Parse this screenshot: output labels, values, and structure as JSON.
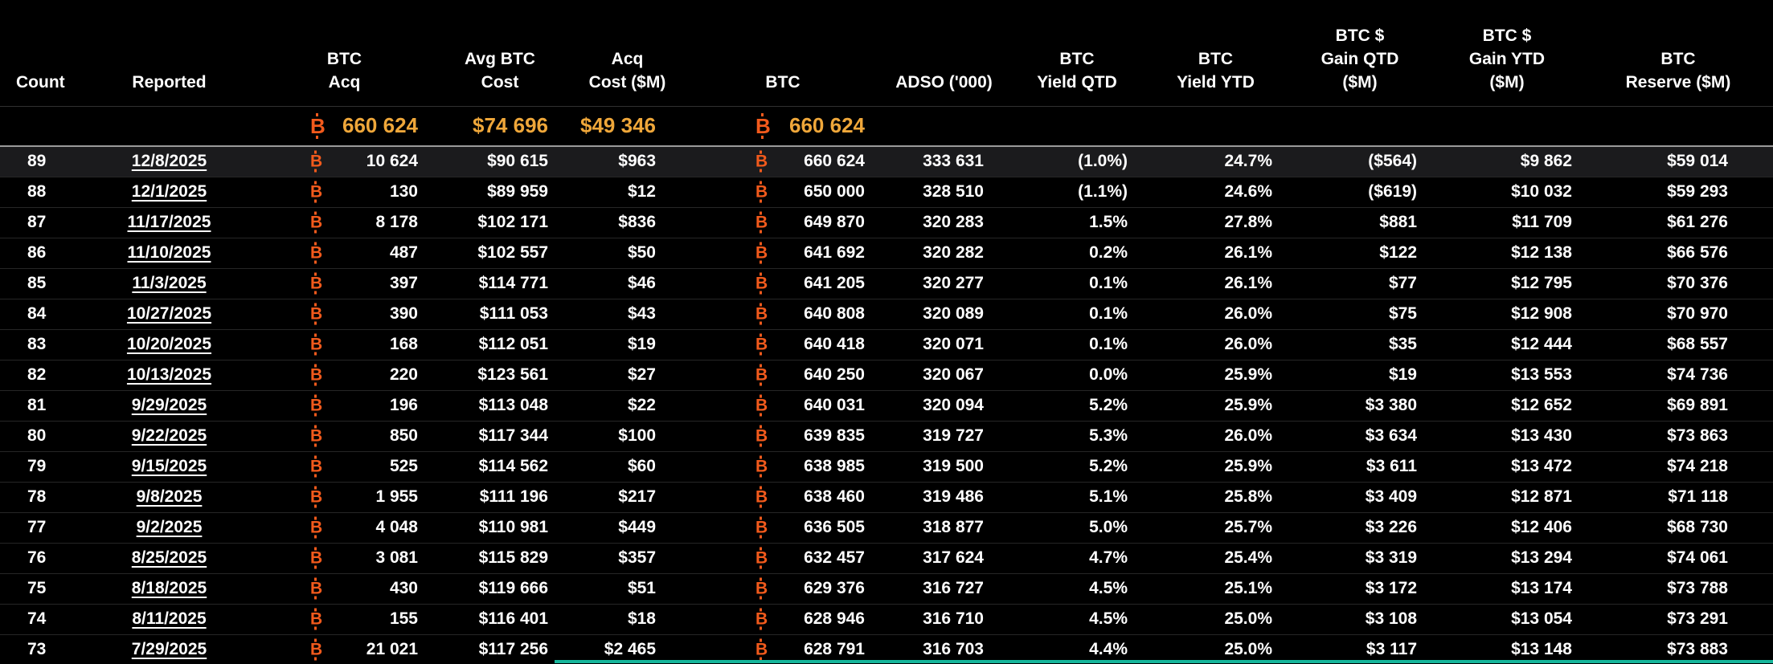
{
  "colors": {
    "bg": "#000000",
    "text": "#ffffff",
    "btc": "#f25a1c",
    "gold": "#efa73a",
    "separator": "#262626",
    "rule": "#9b9b9b",
    "teal": "#17b79c",
    "highlight": "#1b1b1d"
  },
  "icons": {
    "btc": "B"
  },
  "table": {
    "highlighted_row": "89",
    "columns": [
      {
        "key": "count",
        "label": "Count"
      },
      {
        "key": "reported",
        "label": "Reported",
        "link": true
      },
      {
        "key": "btc_acq",
        "label": "BTC\nAcq",
        "btc_prefix": true
      },
      {
        "key": "avg_btc_cost",
        "label": "Avg BTC\nCost"
      },
      {
        "key": "acq_cost",
        "label": "Acq\nCost ($M)"
      },
      {
        "key": "btc",
        "label": "BTC",
        "btc_prefix": true
      },
      {
        "key": "adso",
        "label": "ADSO ('000)"
      },
      {
        "key": "yield_qtd",
        "label": "BTC\nYield QTD"
      },
      {
        "key": "yield_ytd",
        "label": "BTC\nYield YTD"
      },
      {
        "key": "gain_qtd",
        "label": "BTC $\nGain QTD\n($M)"
      },
      {
        "key": "gain_ytd",
        "label": "BTC $\nGain YTD\n($M)"
      },
      {
        "key": "reserve",
        "label": "BTC\nReserve ($M)"
      }
    ],
    "summary": {
      "btc_acq": "660 624",
      "avg_btc_cost": "$74 696",
      "acq_cost": "$49 346",
      "btc": "660 624"
    },
    "rows": [
      {
        "count": "89",
        "reported": "12/8/2025",
        "btc_acq": "10 624",
        "avg_btc_cost": "$90 615",
        "acq_cost": "$963",
        "btc": "660 624",
        "adso": "333 631",
        "yield_qtd": "(1.0%)",
        "yield_ytd": "24.7%",
        "gain_qtd": "($564)",
        "gain_ytd": "$9 862",
        "reserve": "$59 014"
      },
      {
        "count": "88",
        "reported": "12/1/2025",
        "btc_acq": "130",
        "avg_btc_cost": "$89 959",
        "acq_cost": "$12",
        "btc": "650 000",
        "adso": "328 510",
        "yield_qtd": "(1.1%)",
        "yield_ytd": "24.6%",
        "gain_qtd": "($619)",
        "gain_ytd": "$10 032",
        "reserve": "$59 293"
      },
      {
        "count": "87",
        "reported": "11/17/2025",
        "btc_acq": "8 178",
        "avg_btc_cost": "$102 171",
        "acq_cost": "$836",
        "btc": "649 870",
        "adso": "320 283",
        "yield_qtd": "1.5%",
        "yield_ytd": "27.8%",
        "gain_qtd": "$881",
        "gain_ytd": "$11 709",
        "reserve": "$61 276"
      },
      {
        "count": "86",
        "reported": "11/10/2025",
        "btc_acq": "487",
        "avg_btc_cost": "$102 557",
        "acq_cost": "$50",
        "btc": "641 692",
        "adso": "320 282",
        "yield_qtd": "0.2%",
        "yield_ytd": "26.1%",
        "gain_qtd": "$122",
        "gain_ytd": "$12 138",
        "reserve": "$66 576"
      },
      {
        "count": "85",
        "reported": "11/3/2025",
        "btc_acq": "397",
        "avg_btc_cost": "$114 771",
        "acq_cost": "$46",
        "btc": "641 205",
        "adso": "320 277",
        "yield_qtd": "0.1%",
        "yield_ytd": "26.1%",
        "gain_qtd": "$77",
        "gain_ytd": "$12 795",
        "reserve": "$70 376"
      },
      {
        "count": "84",
        "reported": "10/27/2025",
        "btc_acq": "390",
        "avg_btc_cost": "$111 053",
        "acq_cost": "$43",
        "btc": "640 808",
        "adso": "320 089",
        "yield_qtd": "0.1%",
        "yield_ytd": "26.0%",
        "gain_qtd": "$75",
        "gain_ytd": "$12 908",
        "reserve": "$70 970"
      },
      {
        "count": "83",
        "reported": "10/20/2025",
        "btc_acq": "168",
        "avg_btc_cost": "$112 051",
        "acq_cost": "$19",
        "btc": "640 418",
        "adso": "320 071",
        "yield_qtd": "0.1%",
        "yield_ytd": "26.0%",
        "gain_qtd": "$35",
        "gain_ytd": "$12 444",
        "reserve": "$68 557"
      },
      {
        "count": "82",
        "reported": "10/13/2025",
        "btc_acq": "220",
        "avg_btc_cost": "$123 561",
        "acq_cost": "$27",
        "btc": "640 250",
        "adso": "320 067",
        "yield_qtd": "0.0%",
        "yield_ytd": "25.9%",
        "gain_qtd": "$19",
        "gain_ytd": "$13 553",
        "reserve": "$74 736"
      },
      {
        "count": "81",
        "reported": "9/29/2025",
        "btc_acq": "196",
        "avg_btc_cost": "$113 048",
        "acq_cost": "$22",
        "btc": "640 031",
        "adso": "320 094",
        "yield_qtd": "5.2%",
        "yield_ytd": "25.9%",
        "gain_qtd": "$3 380",
        "gain_ytd": "$12 652",
        "reserve": "$69 891"
      },
      {
        "count": "80",
        "reported": "9/22/2025",
        "btc_acq": "850",
        "avg_btc_cost": "$117 344",
        "acq_cost": "$100",
        "btc": "639 835",
        "adso": "319 727",
        "yield_qtd": "5.3%",
        "yield_ytd": "26.0%",
        "gain_qtd": "$3 634",
        "gain_ytd": "$13 430",
        "reserve": "$73 863"
      },
      {
        "count": "79",
        "reported": "9/15/2025",
        "btc_acq": "525",
        "avg_btc_cost": "$114 562",
        "acq_cost": "$60",
        "btc": "638 985",
        "adso": "319 500",
        "yield_qtd": "5.2%",
        "yield_ytd": "25.9%",
        "gain_qtd": "$3 611",
        "gain_ytd": "$13 472",
        "reserve": "$74 218"
      },
      {
        "count": "78",
        "reported": "9/8/2025",
        "btc_acq": "1 955",
        "avg_btc_cost": "$111 196",
        "acq_cost": "$217",
        "btc": "638 460",
        "adso": "319 486",
        "yield_qtd": "5.1%",
        "yield_ytd": "25.8%",
        "gain_qtd": "$3 409",
        "gain_ytd": "$12 871",
        "reserve": "$71 118"
      },
      {
        "count": "77",
        "reported": "9/2/2025",
        "btc_acq": "4 048",
        "avg_btc_cost": "$110 981",
        "acq_cost": "$449",
        "btc": "636 505",
        "adso": "318 877",
        "yield_qtd": "5.0%",
        "yield_ytd": "25.7%",
        "gain_qtd": "$3 226",
        "gain_ytd": "$12 406",
        "reserve": "$68 730"
      },
      {
        "count": "76",
        "reported": "8/25/2025",
        "btc_acq": "3 081",
        "avg_btc_cost": "$115 829",
        "acq_cost": "$357",
        "btc": "632 457",
        "adso": "317 624",
        "yield_qtd": "4.7%",
        "yield_ytd": "25.4%",
        "gain_qtd": "$3 319",
        "gain_ytd": "$13 294",
        "reserve": "$74 061"
      },
      {
        "count": "75",
        "reported": "8/18/2025",
        "btc_acq": "430",
        "avg_btc_cost": "$119 666",
        "acq_cost": "$51",
        "btc": "629 376",
        "adso": "316 727",
        "yield_qtd": "4.5%",
        "yield_ytd": "25.1%",
        "gain_qtd": "$3 172",
        "gain_ytd": "$13 174",
        "reserve": "$73 788"
      },
      {
        "count": "74",
        "reported": "8/11/2025",
        "btc_acq": "155",
        "avg_btc_cost": "$116 401",
        "acq_cost": "$18",
        "btc": "628 946",
        "adso": "316 710",
        "yield_qtd": "4.5%",
        "yield_ytd": "25.0%",
        "gain_qtd": "$3 108",
        "gain_ytd": "$13 054",
        "reserve": "$73 291"
      },
      {
        "count": "73",
        "reported": "7/29/2025",
        "btc_acq": "21 021",
        "avg_btc_cost": "$117 256",
        "acq_cost": "$2 465",
        "btc": "628 791",
        "adso": "316 703",
        "yield_qtd": "4.4%",
        "yield_ytd": "25.0%",
        "gain_qtd": "$3 117",
        "gain_ytd": "$13 148",
        "reserve": "$73 883"
      }
    ]
  }
}
